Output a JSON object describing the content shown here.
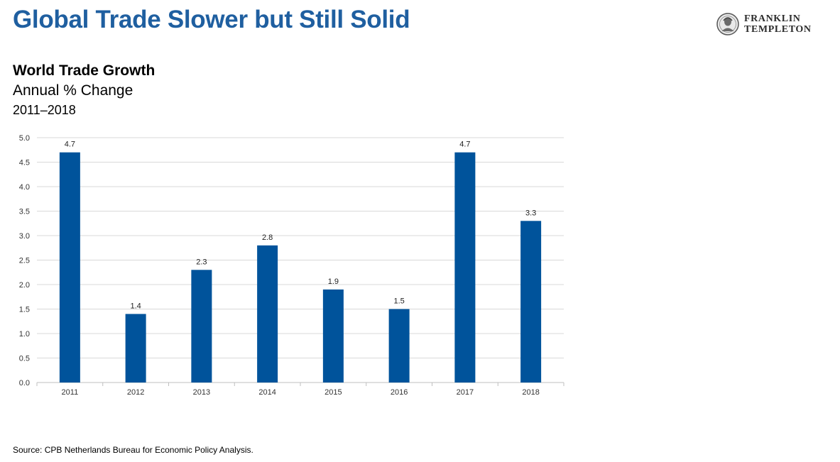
{
  "header": {
    "title": "Global Trade Slower but Still Solid",
    "logo_line1": "FRANKLIN",
    "logo_line2": "TEMPLETON"
  },
  "chart_data": {
    "type": "bar",
    "title": "World Trade Growth",
    "subtitle": "Annual % Change",
    "period": "2011–2018",
    "categories": [
      "2011",
      "2012",
      "2013",
      "2014",
      "2015",
      "2016",
      "2017",
      "2018"
    ],
    "values": [
      4.7,
      1.4,
      2.3,
      2.8,
      1.9,
      1.5,
      4.7,
      3.3
    ],
    "data_labels": [
      "4.7",
      "1.4",
      "2.3",
      "2.8",
      "1.9",
      "1.5",
      "4.7",
      "3.3"
    ],
    "yticks": [
      "0.0",
      "0.5",
      "1.0",
      "1.5",
      "2.0",
      "2.5",
      "3.0",
      "3.5",
      "4.0",
      "4.5",
      "5.0"
    ],
    "ylim": [
      0,
      5
    ],
    "xlabel": "",
    "ylabel": "",
    "grid": true,
    "legend": "none",
    "bar_color": "#00539b",
    "grid_color": "#d9d9d9"
  },
  "footer": {
    "source": "Source:  CPB Netherlands Bureau for Economic Policy Analysis."
  }
}
